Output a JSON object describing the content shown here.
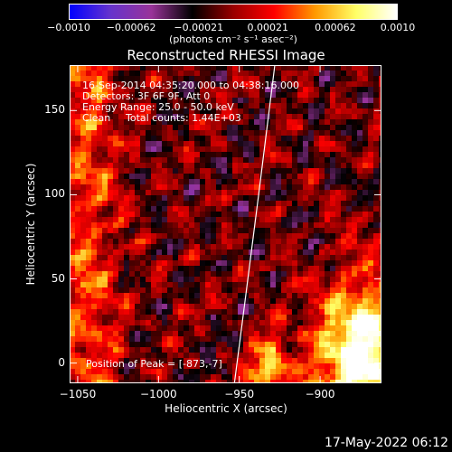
{
  "chart_data": {
    "type": "heatmap",
    "title": "Reconstructed RHESSI Image",
    "xlabel": "Heliocentric X (arcsec)",
    "ylabel": "Heliocentric Y (arcsec)",
    "xlim": [
      -1055,
      -862
    ],
    "ylim": [
      -12,
      177
    ],
    "x_ticks": [
      {
        "value": -1050,
        "label": "−1050"
      },
      {
        "value": -1000,
        "label": "−1000"
      },
      {
        "value": -950,
        "label": "−950"
      },
      {
        "value": -900,
        "label": "−900"
      }
    ],
    "y_ticks": [
      {
        "value": 0,
        "label": "0"
      },
      {
        "value": 50,
        "label": "50"
      },
      {
        "value": 100,
        "label": "100"
      },
      {
        "value": 150,
        "label": "150"
      }
    ],
    "colorbar": {
      "range": [
        -0.001,
        0.001
      ],
      "colors": [
        "#0000ff",
        "#6633cc",
        "#993399",
        "#000000",
        "#990000",
        "#ff0000",
        "#ff9900",
        "#ffff66",
        "#ffffff"
      ],
      "tick_labels": [
        {
          "value": -0.001,
          "label": "−0.0010"
        },
        {
          "value": -0.00062,
          "label": "−0.00062"
        },
        {
          "value": -0.00021,
          "label": "−0.00021"
        },
        {
          "value": 0.00021,
          "label": "0.00021"
        },
        {
          "value": 0.00062,
          "label": "0.00062"
        },
        {
          "value": 0.001,
          "label": "0.0010"
        }
      ],
      "units": "(photons cm⁻² s⁻¹ asec⁻²)"
    },
    "annotations": {
      "time_range": "16-Sep-2014 04:35:20.000 to 04:38:16.000",
      "detectors": "Detectors: 3F 6F 9F, Att 0",
      "energy_range": "Energy Range: 25.0 - 50.0 keV",
      "method": "Clean",
      "total_counts": "Total counts: 1.44E+03",
      "peak": "Position of Peak = [-873,-7]"
    },
    "limb": [
      [
        -953,
        -12
      ],
      [
        -946,
        40
      ],
      [
        -938,
        100
      ],
      [
        -928,
        177
      ]
    ]
  },
  "footer": {
    "date": "17-May-2022 06:12"
  }
}
